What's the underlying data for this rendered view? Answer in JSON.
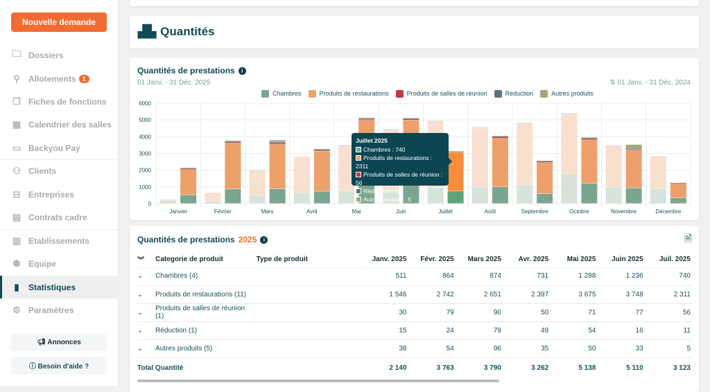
{
  "sidebar": {
    "new_request": "Nouvelle demande",
    "items": [
      {
        "label": "Dossiers",
        "icon": "folder-icon",
        "glyph": "🗀"
      },
      {
        "label": "Allotements",
        "icon": "allotment-icon",
        "glyph": "⚲",
        "badge": "1"
      },
      {
        "label": "Fiches de fonctions",
        "icon": "copy-icon",
        "glyph": "❐"
      },
      {
        "label": "Calendrier des salles",
        "icon": "calendar-icon",
        "glyph": "▦"
      },
      {
        "label": "Backyou Pay",
        "icon": "credit-card-icon",
        "glyph": "▭"
      },
      {
        "label": "Clients",
        "icon": "clients-icon",
        "glyph": "⚇"
      },
      {
        "label": "Entreprises",
        "icon": "briefcase-icon",
        "glyph": "⊟"
      },
      {
        "label": "Contrats cadre",
        "icon": "document-icon",
        "glyph": "▤"
      },
      {
        "label": "Etablissements",
        "icon": "building-icon",
        "glyph": "▥"
      },
      {
        "label": "Equipe",
        "icon": "team-icon",
        "glyph": "⚉"
      },
      {
        "label": "Statistiques",
        "icon": "bar-chart-icon",
        "glyph": "▮",
        "active": true
      },
      {
        "label": "Paramètres",
        "icon": "gear-icon",
        "glyph": "⚙"
      }
    ],
    "announcements": "Annonces",
    "help": "Besoin d'aide ?"
  },
  "header": {
    "title": "Quantités",
    "icon": "boxes-icon"
  },
  "chart_card": {
    "title": "Quantités de prestations",
    "period": "01 Janv. - 31 Déc. 2025",
    "compare_period": "01 Janv. - 31 Déc. 2024"
  },
  "chart_data": {
    "type": "bar",
    "stacked": true,
    "grid": true,
    "legend": "top",
    "ylim": [
      0,
      6000
    ],
    "yticks": [
      0,
      1000,
      2000,
      3000,
      4000,
      5000,
      6000
    ],
    "categories": [
      "Janvier",
      "Février",
      "Mars",
      "Avril",
      "Mai",
      "Juin",
      "Juillet",
      "Août",
      "Septembre",
      "Octobre",
      "Novembre",
      "Décembre"
    ],
    "colors": {
      "Chambres": "#7aa58e",
      "Produits de restaurations": "#eda06a",
      "Produits de salles de réunion": "#c0394a",
      "Réduction": "#5e7382",
      "Autres produits": "#9ea87a"
    },
    "series_2025": [
      {
        "name": "Chambres",
        "values": [
          511,
          864,
          874,
          731,
          1288,
          1236,
          740,
          990,
          590,
          1200,
          930,
          340
        ]
      },
      {
        "name": "Produits de restaurations",
        "values": [
          1546,
          2742,
          2651,
          2397,
          3675,
          3748,
          2311,
          2900,
          1850,
          2600,
          2250,
          880
        ]
      },
      {
        "name": "Produits de salles de réunion",
        "values": [
          30,
          79,
          90,
          50,
          71,
          77,
          56,
          100,
          70,
          80,
          50,
          10
        ]
      },
      {
        "name": "Réduction",
        "values": [
          15,
          24,
          79,
          49,
          54,
          16,
          11,
          20,
          20,
          30,
          20,
          5
        ]
      },
      {
        "name": "Autres produits",
        "values": [
          38,
          54,
          96,
          35,
          50,
          33,
          5,
          30,
          30,
          40,
          270,
          5
        ]
      }
    ],
    "series_2024": [
      {
        "name": "Chambres",
        "values": [
          170,
          120,
          470,
          630,
          760,
          760,
          950,
          980,
          1100,
          1780,
          950,
          880
        ]
      },
      {
        "name": "Produits de restaurations",
        "values": [
          40,
          530,
          1500,
          2090,
          2610,
          3600,
          3850,
          3500,
          3600,
          3500,
          2400,
          1900
        ]
      },
      {
        "name": "Produits de salles de réunion",
        "values": [
          50,
          0,
          20,
          70,
          100,
          80,
          100,
          60,
          80,
          80,
          80,
          50
        ]
      },
      {
        "name": "Réduction",
        "values": [
          0,
          0,
          0,
          0,
          0,
          0,
          0,
          0,
          0,
          0,
          0,
          0
        ]
      },
      {
        "name": "Autres produits",
        "values": [
          0,
          0,
          10,
          0,
          0,
          0,
          50,
          40,
          70,
          40,
          70,
          0
        ]
      }
    ],
    "tooltip": {
      "title": "Juillet 2025",
      "lines": [
        "Chambres : 740",
        "Produits de restaurations : 2311",
        "Produits de salles de réunion : 56",
        "Réduction : 11",
        "Autres produits : 5"
      ]
    }
  },
  "table": {
    "title": "Quantités de prestations",
    "year": "2025",
    "export_icon": "xls-file-icon",
    "headers": [
      "Categorie de produit",
      "Type de produit",
      "Janv. 2025",
      "Févr. 2025",
      "Mars 2025",
      "Avr. 2025",
      "Mai 2025",
      "Juin 2025",
      "Juil. 2025"
    ],
    "rows": [
      {
        "label": "Chambres (4)",
        "values": [
          "511",
          "864",
          "874",
          "731",
          "1 288",
          "1 236",
          "740"
        ]
      },
      {
        "label": "Produits de restaurations (11)",
        "values": [
          "1 546",
          "2 742",
          "2 651",
          "2 397",
          "3 675",
          "3 748",
          "2 311"
        ]
      },
      {
        "label": "Produits de salles de réunion (1)",
        "values": [
          "30",
          "79",
          "90",
          "50",
          "71",
          "77",
          "56"
        ]
      },
      {
        "label": "Réduction (1)",
        "values": [
          "15",
          "24",
          "79",
          "49",
          "54",
          "16",
          "11"
        ]
      },
      {
        "label": "Autres produits (5)",
        "values": [
          "38",
          "54",
          "96",
          "35",
          "50",
          "33",
          "5"
        ]
      }
    ],
    "total": {
      "label": "Total Quantité",
      "values": [
        "2 140",
        "3 763",
        "3 790",
        "3 262",
        "5 138",
        "5 110",
        "3 123"
      ]
    }
  }
}
